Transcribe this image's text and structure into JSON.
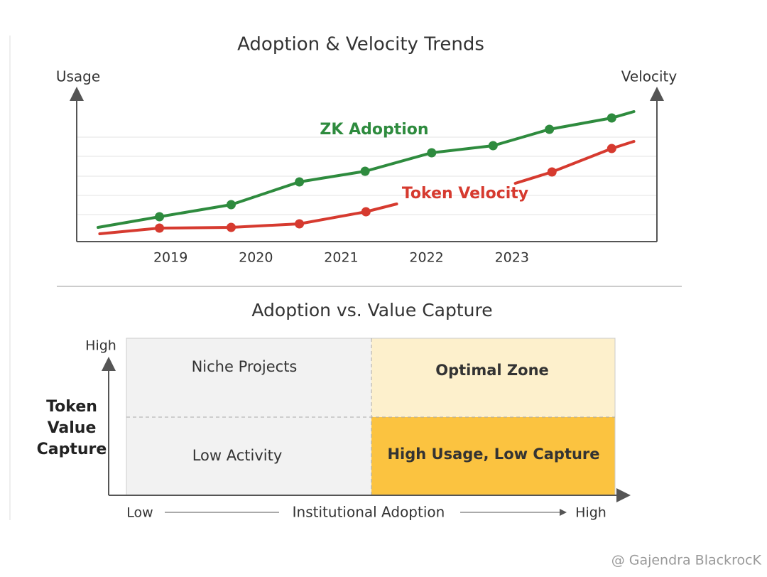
{
  "chart_data": [
    {
      "type": "line",
      "title": "Adoption & Velocity Trends",
      "y_label": "Usage",
      "y2_label": "Velocity",
      "xlim": [
        2017.9,
        2024.7
      ],
      "xticks": [
        2019,
        2020,
        2021,
        2022,
        2023
      ],
      "ylim": [
        0,
        100
      ],
      "series": [
        {
          "name": "ZK Adoption",
          "color": "#2e8b3e",
          "x": [
            2018.15,
            2018.87,
            2019.71,
            2020.51,
            2021.28,
            2022.06,
            2022.78,
            2023.44,
            2024.17,
            2024.43
          ],
          "values": [
            10,
            17.5,
            26,
            42,
            49.5,
            62.5,
            67.5,
            79,
            87,
            91.5
          ]
        },
        {
          "name": "Token Velocity",
          "color": "#d63a2f",
          "x": [
            2018.17,
            2018.87,
            2019.71,
            2020.51,
            2021.29,
            2021.65,
            2022.5,
            2023.04,
            2023.47,
            2024.17,
            2024.43
          ],
          "values": [
            5.5,
            9.5,
            10,
            12.5,
            21,
            26.5,
            null,
            41,
            49,
            65.5,
            70.5
          ]
        }
      ]
    },
    {
      "type": "quadrant",
      "title": "Adoption vs. Value Capture",
      "y_label": "Token Value Capture",
      "y_high": "High",
      "x_low": "Low",
      "x_label": "Institutional Adoption",
      "x_high": "High",
      "quadrants": [
        {
          "label": "Niche Projects",
          "color": "#f2f2f2"
        },
        {
          "label": "Optimal Zone",
          "color": "#fdf0cc"
        },
        {
          "label": "Low Activity",
          "color": "#f2f2f2"
        },
        {
          "label": "High Usage, Low Capture",
          "color": "#fbc340"
        }
      ]
    }
  ],
  "watermark": "@ Gajendra BlackrocK"
}
